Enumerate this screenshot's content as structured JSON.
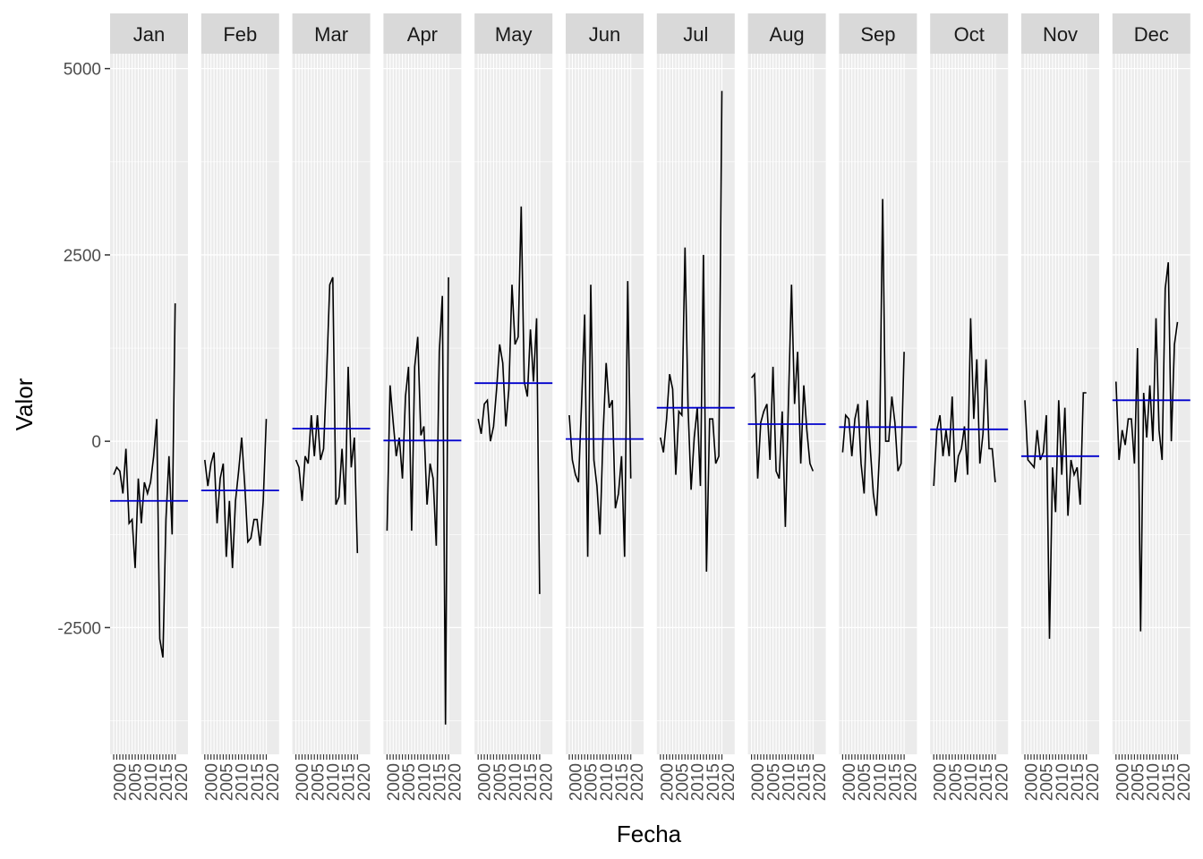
{
  "chart_data": {
    "type": "line",
    "facet_by": "month",
    "xlabel": "Fecha",
    "ylabel": "Valor",
    "x_ticks": [
      "2000",
      "2005",
      "2010",
      "2015",
      "2020"
    ],
    "x_range": [
      1998,
      2021
    ],
    "y_ticks": [
      5000,
      2500,
      0,
      -2500
    ],
    "y_range": [
      -4200,
      5200
    ],
    "grid": true,
    "legend": "none",
    "colors": {
      "panel_bg": "#EBEBEB",
      "grid": "#FFFFFF",
      "strip_bg": "#D9D9D9",
      "line": "#000000",
      "mean_line": "#0000CC",
      "tick_text": "#4D4D4D"
    },
    "panels": [
      {
        "label": "Jan",
        "mean": -800,
        "years": [
          1998,
          1999,
          2000,
          2001,
          2002,
          2003,
          2004,
          2005,
          2006,
          2007,
          2008,
          2009,
          2010,
          2011,
          2012,
          2013,
          2014,
          2015,
          2016,
          2017,
          2018
        ],
        "values": [
          -450,
          -350,
          -400,
          -700,
          -100,
          -1100,
          -1050,
          -1700,
          -500,
          -1100,
          -550,
          -700,
          -550,
          -200,
          300,
          -2650,
          -2900,
          -1050,
          -200,
          -1250,
          1850
        ]
      },
      {
        "label": "Feb",
        "mean": -660,
        "years": [
          1998,
          1999,
          2000,
          2001,
          2002,
          2003,
          2004,
          2005,
          2006,
          2007,
          2008,
          2009,
          2010,
          2011,
          2012,
          2013,
          2014,
          2015,
          2016,
          2017,
          2018
        ],
        "values": [
          -250,
          -600,
          -300,
          -150,
          -1100,
          -500,
          -300,
          -1550,
          -800,
          -1700,
          -800,
          -400,
          50,
          -600,
          -1350,
          -1300,
          -1050,
          -1050,
          -1400,
          -800,
          300
        ]
      },
      {
        "label": "Mar",
        "mean": 170,
        "years": [
          1998,
          1999,
          2000,
          2001,
          2002,
          2003,
          2004,
          2005,
          2006,
          2007,
          2008,
          2009,
          2010,
          2011,
          2012,
          2013,
          2014,
          2015,
          2016,
          2017,
          2018
        ],
        "values": [
          -250,
          -350,
          -800,
          -200,
          -300,
          350,
          -200,
          350,
          -250,
          -100,
          900,
          2100,
          2200,
          -850,
          -750,
          -100,
          -850,
          1000,
          -350,
          50,
          -1500
        ]
      },
      {
        "label": "Apr",
        "mean": 10,
        "years": [
          1998,
          1999,
          2000,
          2001,
          2002,
          2003,
          2004,
          2005,
          2006,
          2007,
          2008,
          2009,
          2010,
          2011,
          2012,
          2013,
          2014,
          2015,
          2016,
          2017,
          2018
        ],
        "values": [
          -1200,
          750,
          250,
          -200,
          50,
          -500,
          600,
          1000,
          -1200,
          1000,
          1400,
          80,
          200,
          -850,
          -300,
          -500,
          -1400,
          1200,
          1950,
          -3800,
          2200
        ]
      },
      {
        "label": "May",
        "mean": 780,
        "years": [
          1998,
          1999,
          2000,
          2001,
          2002,
          2003,
          2004,
          2005,
          2006,
          2007,
          2008,
          2009,
          2010,
          2011,
          2012,
          2013,
          2014,
          2015,
          2016,
          2017,
          2018
        ],
        "values": [
          300,
          100,
          500,
          550,
          0,
          200,
          700,
          1300,
          1050,
          200,
          700,
          2100,
          1300,
          1400,
          3150,
          800,
          600,
          1500,
          800,
          1650,
          -2050
        ]
      },
      {
        "label": "Jun",
        "mean": 30,
        "years": [
          1998,
          1999,
          2000,
          2001,
          2002,
          2003,
          2004,
          2005,
          2006,
          2007,
          2008,
          2009,
          2010,
          2011,
          2012,
          2013,
          2014,
          2015,
          2016,
          2017,
          2018
        ],
        "values": [
          350,
          -250,
          -450,
          -550,
          500,
          1700,
          -1550,
          2100,
          -250,
          -600,
          -1250,
          100,
          1050,
          450,
          550,
          -900,
          -700,
          -200,
          -1550,
          2150,
          -500
        ]
      },
      {
        "label": "Jul",
        "mean": 450,
        "years": [
          1998,
          1999,
          2000,
          2001,
          2002,
          2003,
          2004,
          2005,
          2006,
          2007,
          2008,
          2009,
          2010,
          2011,
          2012,
          2013,
          2014,
          2015,
          2016,
          2017,
          2018
        ],
        "values": [
          50,
          -150,
          300,
          900,
          700,
          -450,
          400,
          350,
          2600,
          450,
          -650,
          50,
          450,
          -600,
          2500,
          -1750,
          300,
          300,
          -300,
          -200,
          4700
        ]
      },
      {
        "label": "Aug",
        "mean": 230,
        "years": [
          1998,
          1999,
          2000,
          2001,
          2002,
          2003,
          2004,
          2005,
          2006,
          2007,
          2008,
          2009,
          2010,
          2011,
          2012,
          2013,
          2014,
          2015,
          2016,
          2017,
          2018
        ],
        "values": [
          850,
          900,
          -500,
          250,
          400,
          500,
          -250,
          1000,
          -400,
          -500,
          400,
          -1150,
          500,
          2100,
          500,
          1200,
          -300,
          750,
          150,
          -300,
          -400
        ]
      },
      {
        "label": "Sep",
        "mean": 190,
        "years": [
          1998,
          1999,
          2000,
          2001,
          2002,
          2003,
          2004,
          2005,
          2006,
          2007,
          2008,
          2009,
          2010,
          2011,
          2012,
          2013,
          2014,
          2015,
          2016,
          2017,
          2018
        ],
        "values": [
          -150,
          350,
          300,
          -200,
          300,
          500,
          -300,
          -700,
          550,
          -100,
          -700,
          -1000,
          -150,
          3250,
          0,
          0,
          600,
          250,
          -400,
          -300,
          1200
        ]
      },
      {
        "label": "Oct",
        "mean": 160,
        "years": [
          1998,
          1999,
          2000,
          2001,
          2002,
          2003,
          2004,
          2005,
          2006,
          2007,
          2008,
          2009,
          2010,
          2011,
          2012,
          2013,
          2014,
          2015,
          2016,
          2017,
          2018
        ],
        "values": [
          -600,
          150,
          350,
          -200,
          150,
          -200,
          600,
          -550,
          -200,
          -100,
          200,
          -450,
          1650,
          300,
          1100,
          -300,
          100,
          1100,
          -100,
          -100,
          -550
        ]
      },
      {
        "label": "Nov",
        "mean": -200,
        "years": [
          1998,
          1999,
          2000,
          2001,
          2002,
          2003,
          2004,
          2005,
          2006,
          2007,
          2008,
          2009,
          2010,
          2011,
          2012,
          2013,
          2014,
          2015,
          2016,
          2017,
          2018
        ],
        "values": [
          550,
          -250,
          -300,
          -350,
          150,
          -250,
          -150,
          350,
          -2650,
          -350,
          -950,
          550,
          -450,
          450,
          -1000,
          -250,
          -450,
          -350,
          -850,
          650,
          650
        ]
      },
      {
        "label": "Dec",
        "mean": 550,
        "years": [
          1998,
          1999,
          2000,
          2001,
          2002,
          2003,
          2004,
          2005,
          2006,
          2007,
          2008,
          2009,
          2010,
          2011,
          2012,
          2013,
          2014,
          2015,
          2016,
          2017,
          2018
        ],
        "values": [
          800,
          -250,
          150,
          -50,
          300,
          300,
          -300,
          1250,
          -2550,
          650,
          50,
          750,
          0,
          1650,
          150,
          -250,
          2050,
          2400,
          0,
          1300,
          1600
        ]
      }
    ]
  }
}
